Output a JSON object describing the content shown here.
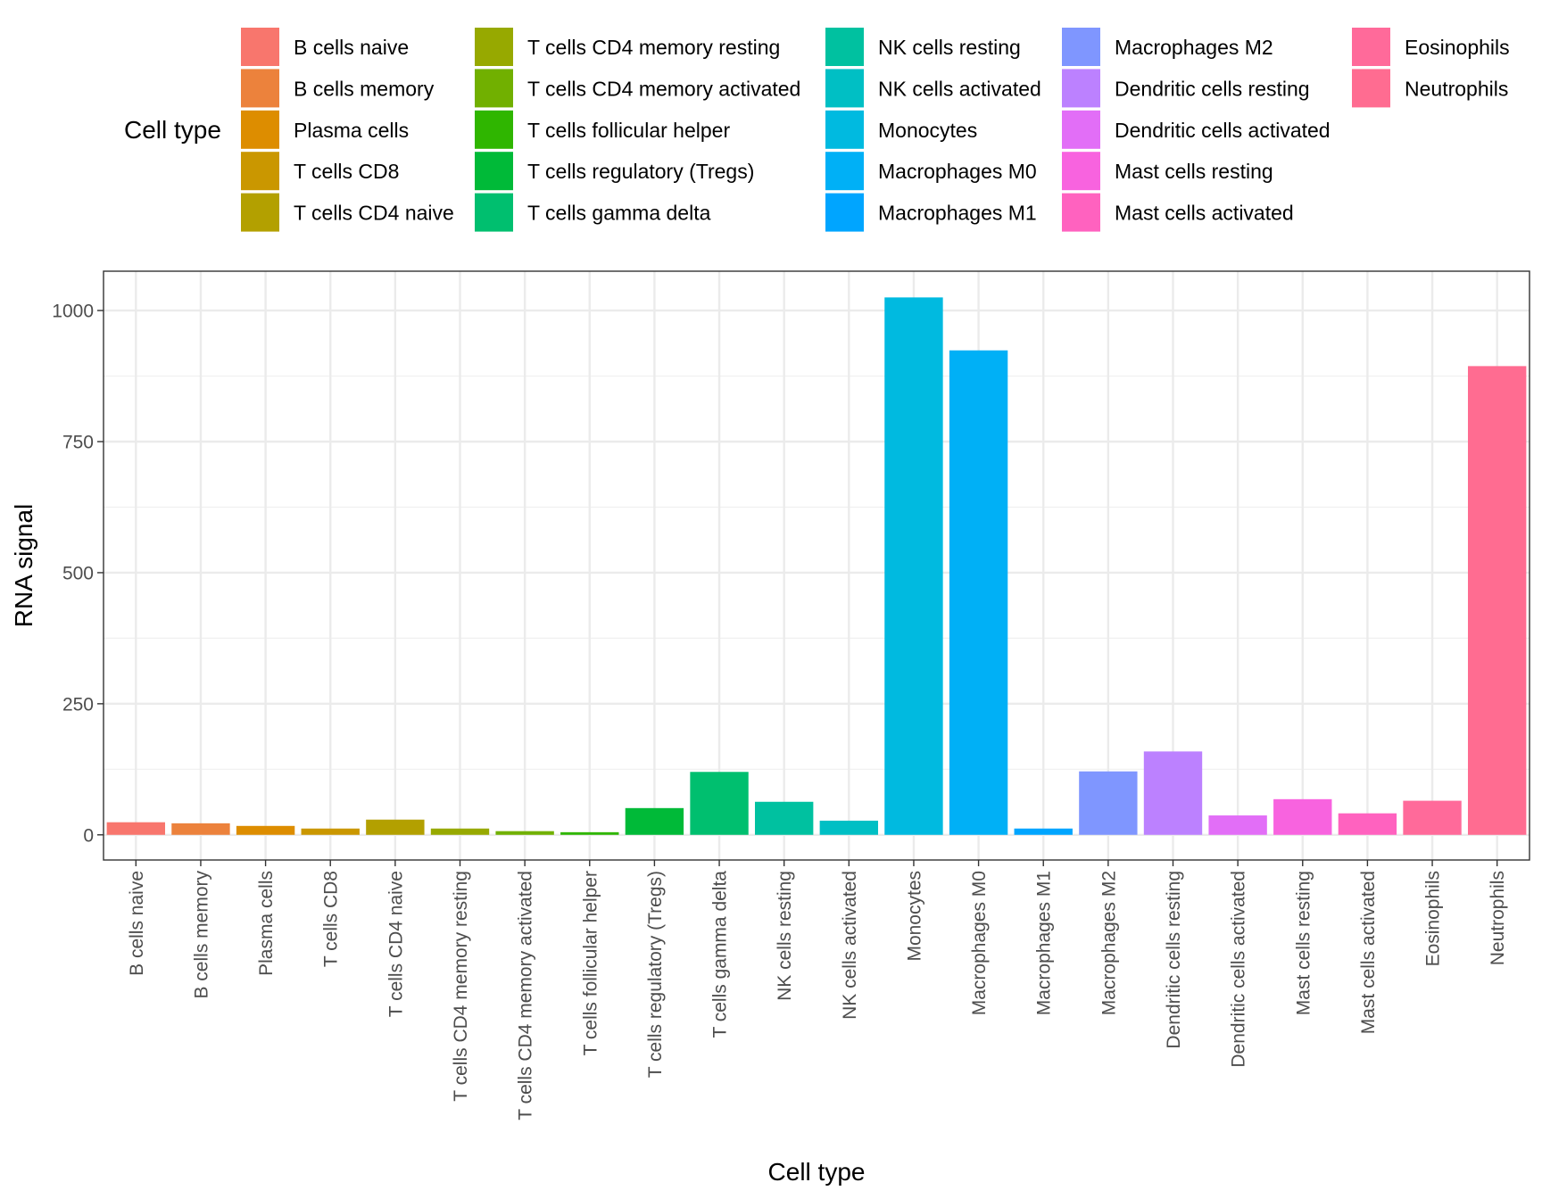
{
  "chart_data": {
    "type": "bar",
    "title": "",
    "xlabel": "Cell type",
    "ylabel": "RNA signal",
    "ylim": [
      -48,
      1075
    ],
    "yticks": [
      0,
      250,
      500,
      750,
      1000
    ],
    "yticks_labels": [
      "0",
      "250",
      "500",
      "750",
      "1000"
    ],
    "grid": true,
    "legend": {
      "title": "Cell type",
      "position": "top"
    },
    "categories": [
      "B cells naive",
      "B cells memory",
      "Plasma cells",
      "T cells CD8",
      "T cells CD4 naive",
      "T cells CD4 memory resting",
      "T cells CD4 memory activated",
      "T cells follicular helper",
      "T cells regulatory (Tregs)",
      "T cells gamma delta",
      "NK cells resting",
      "NK cells activated",
      "Monocytes",
      "Macrophages M0",
      "Macrophages M1",
      "Macrophages M2",
      "Dendritic cells resting",
      "Dendritic cells activated",
      "Mast cells resting",
      "Mast cells activated",
      "Eosinophils",
      "Neutrophils"
    ],
    "values": [
      24,
      22,
      17,
      12,
      29,
      12,
      7,
      5,
      51,
      120,
      63,
      27,
      1025,
      924,
      12,
      121,
      159,
      37,
      68,
      41,
      65,
      894
    ],
    "colors": [
      "#F8766D",
      "#EC823C",
      "#DD8D00",
      "#CA9700",
      "#B3A000",
      "#97A900",
      "#71B000",
      "#2FB600",
      "#00BA38",
      "#00BF6F",
      "#00C1A0",
      "#00BFC4",
      "#00BAE0",
      "#00B0F6",
      "#00A5FF",
      "#7F96FF",
      "#BC81FF",
      "#E26EF7",
      "#F863DF",
      "#FF62BF",
      "#FF6A9A",
      "#FF6C91"
    ]
  }
}
